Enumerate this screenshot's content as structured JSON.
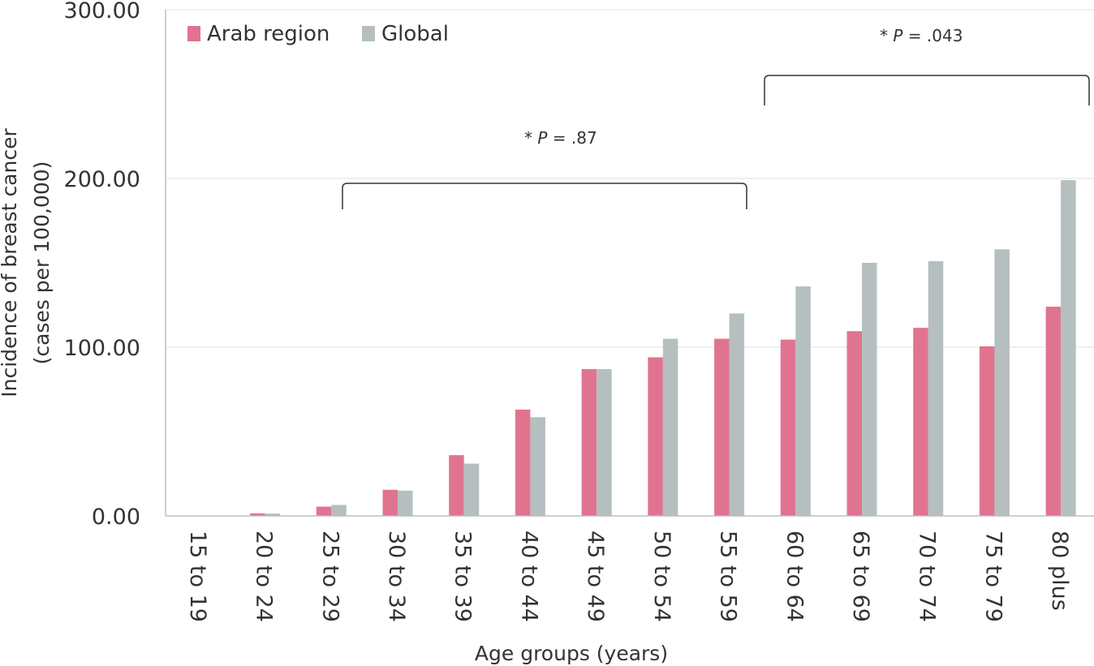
{
  "chart_data": {
    "type": "bar",
    "xlabel": "Age groups (years)",
    "ylabel_lines": [
      "Incidence of breast cancer",
      "(cases per 100,000)"
    ],
    "ylim": [
      0,
      300
    ],
    "yticks": [
      "0.00",
      "100.00",
      "200.00",
      "300.00"
    ],
    "ytick_values": [
      0,
      100,
      200,
      300
    ],
    "grid": true,
    "legend_position": "top-left",
    "categories": [
      "15 to 19",
      "20 to 24",
      "25 to 29",
      "30 to 34",
      "35 to 39",
      "40 to 44",
      "45 to 49",
      "50 to 54",
      "55 to 59",
      "60 to 64",
      "65 to 69",
      "70 to 74",
      "75 to 79",
      "80 plus"
    ],
    "series": [
      {
        "name": "Arab region",
        "color": "#e07490",
        "values": [
          0.2,
          1.5,
          5.5,
          15.5,
          36,
          63,
          87,
          94,
          105,
          104.5,
          109.5,
          111.5,
          100.5,
          124
        ]
      },
      {
        "name": "Global",
        "color": "#b5bfbf",
        "values": [
          0.1,
          1.4,
          6.5,
          15,
          31,
          58.5,
          87,
          105,
          120,
          136,
          150,
          151,
          158,
          199
        ]
      }
    ],
    "annotations": [
      {
        "star": "*",
        "p_label": "P",
        "p_value": "= .87",
        "from_category": "25 to 29",
        "to_category": "55 to 59",
        "level": 197
      },
      {
        "star": "*",
        "p_label": "P",
        "p_value": "= .043",
        "from_category": "60 to 64",
        "to_category": "80 plus",
        "level": 261
      }
    ]
  }
}
